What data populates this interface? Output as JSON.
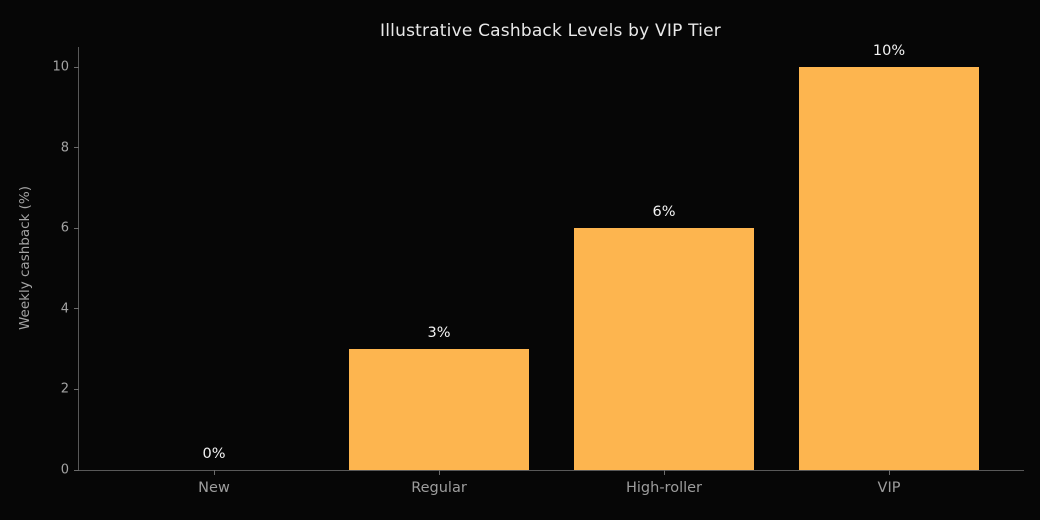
{
  "figure": {
    "background_color": "#060606"
  },
  "chart_data": {
    "type": "bar",
    "title": "Illustrative Cashback Levels by VIP Tier",
    "categories": [
      "New",
      "Regular",
      "High-roller",
      "VIP"
    ],
    "values": [
      0,
      3,
      6,
      10
    ],
    "bar_value_labels": [
      "0%",
      "3%",
      "6%",
      "10%"
    ],
    "xlabel": "",
    "ylabel": "Weekly cashback (%)",
    "yticks": [
      0,
      2,
      4,
      6,
      8,
      10
    ],
    "ylim": [
      0,
      10.5
    ],
    "xlim": [
      -0.6,
      3.6
    ],
    "bar_width_fraction": 0.8,
    "grid": false,
    "legend": false,
    "colors": {
      "bar_fill": "#fdb54f",
      "title_text": "#e9e9e9",
      "value_label_text": "#f2f2f2",
      "tick_label_text": "#a3a3a3",
      "spine": "#585858",
      "background": "#060606"
    }
  }
}
